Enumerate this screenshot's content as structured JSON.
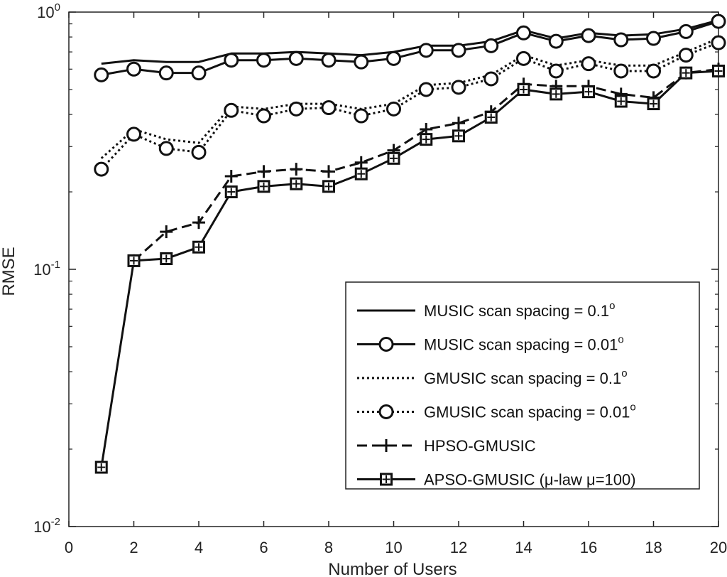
{
  "chart_data": {
    "type": "line",
    "xlabel": "Number of Users",
    "ylabel": "RMSE",
    "xlim": [
      0,
      20
    ],
    "ylim": [
      0.01,
      1
    ],
    "yscale": "log",
    "x_ticks": [
      0,
      2,
      4,
      6,
      8,
      10,
      12,
      14,
      16,
      18,
      20
    ],
    "y_ticks": [
      {
        "value": 0.01,
        "base": "10",
        "exp": "-2"
      },
      {
        "value": 0.1,
        "base": "10",
        "exp": "-1"
      },
      {
        "value": 1,
        "base": "10",
        "exp": "0"
      }
    ],
    "grid": false,
    "legend_position": "bottom-right",
    "series": [
      {
        "name": "MUSIC scan spacing = 0.1",
        "name_sup": "o",
        "line": "solid",
        "marker": "none",
        "x": [
          1,
          2,
          3,
          4,
          5,
          6,
          7,
          8,
          9,
          10,
          11,
          12,
          13,
          14,
          15,
          16,
          17,
          18,
          19,
          20
        ],
        "values": [
          0.63,
          0.65,
          0.64,
          0.64,
          0.69,
          0.69,
          0.7,
          0.69,
          0.68,
          0.7,
          0.74,
          0.74,
          0.77,
          0.85,
          0.79,
          0.83,
          0.81,
          0.82,
          0.86,
          0.93
        ]
      },
      {
        "name": "MUSIC scan spacing = 0.01",
        "name_sup": "o",
        "line": "solid",
        "marker": "circle",
        "x": [
          1,
          2,
          3,
          4,
          5,
          6,
          7,
          8,
          9,
          10,
          11,
          12,
          13,
          14,
          15,
          16,
          17,
          18,
          19,
          20
        ],
        "values": [
          0.57,
          0.6,
          0.58,
          0.58,
          0.65,
          0.65,
          0.66,
          0.65,
          0.64,
          0.66,
          0.71,
          0.71,
          0.74,
          0.83,
          0.77,
          0.81,
          0.78,
          0.79,
          0.84,
          0.92
        ]
      },
      {
        "name": "GMUSIC scan spacing = 0.1",
        "name_sup": "o",
        "line": "dotted",
        "marker": "none",
        "x": [
          1,
          2,
          3,
          4,
          5,
          6,
          7,
          8,
          9,
          10,
          11,
          12,
          13,
          14,
          15,
          16,
          17,
          18,
          19,
          20
        ],
        "values": [
          0.27,
          0.35,
          0.32,
          0.31,
          0.43,
          0.42,
          0.44,
          0.44,
          0.42,
          0.44,
          0.52,
          0.53,
          0.57,
          0.68,
          0.62,
          0.65,
          0.62,
          0.62,
          0.7,
          0.79
        ]
      },
      {
        "name": "GMUSIC scan spacing = 0.01",
        "name_sup": "o",
        "line": "dotted",
        "marker": "circle",
        "x": [
          1,
          2,
          3,
          4,
          5,
          6,
          7,
          8,
          9,
          10,
          11,
          12,
          13,
          14,
          15,
          16,
          17,
          18,
          19,
          20
        ],
        "values": [
          0.245,
          0.335,
          0.295,
          0.285,
          0.415,
          0.395,
          0.42,
          0.425,
          0.395,
          0.42,
          0.5,
          0.51,
          0.55,
          0.66,
          0.59,
          0.63,
          0.59,
          0.59,
          0.68,
          0.76
        ]
      },
      {
        "name": "HPSO-GMUSIC",
        "name_sup": "",
        "line": "dashed",
        "marker": "plus",
        "x": [
          2,
          3,
          4,
          5,
          6,
          7,
          8,
          9,
          10,
          11,
          12,
          13,
          14,
          15,
          16,
          17,
          18,
          19,
          20
        ],
        "values": [
          0.108,
          0.14,
          0.152,
          0.23,
          0.24,
          0.245,
          0.24,
          0.26,
          0.29,
          0.35,
          0.37,
          0.41,
          0.525,
          0.515,
          0.515,
          0.48,
          0.465,
          0.58,
          0.6
        ]
      },
      {
        "name": "APSO-GMUSIC (μ-law μ=100)",
        "name_sup": "",
        "line": "solid",
        "marker": "square",
        "x": [
          1,
          2,
          3,
          4,
          5,
          6,
          7,
          8,
          9,
          10,
          11,
          12,
          13,
          14,
          15,
          16,
          17,
          18,
          19,
          20
        ],
        "values": [
          0.017,
          0.108,
          0.11,
          0.122,
          0.2,
          0.21,
          0.215,
          0.21,
          0.235,
          0.27,
          0.32,
          0.33,
          0.39,
          0.5,
          0.48,
          0.49,
          0.45,
          0.44,
          0.58,
          0.59
        ]
      }
    ]
  }
}
